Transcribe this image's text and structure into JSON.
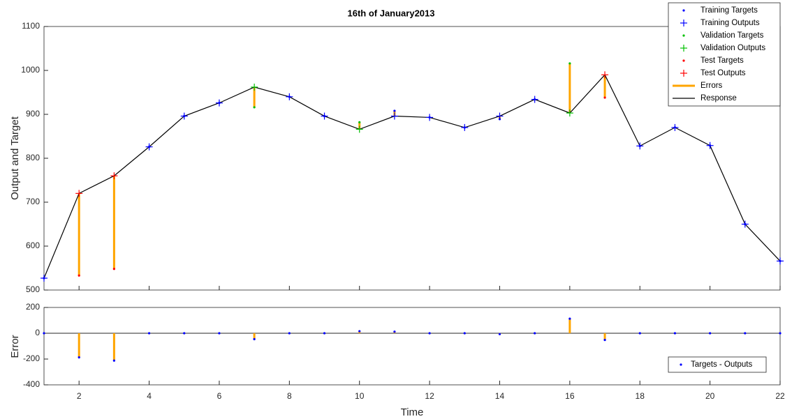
{
  "chart_data": [
    {
      "type": "response",
      "title": "16th of January2013",
      "y_label": "Output and Target",
      "xlim": [
        1,
        22
      ],
      "ylim": [
        500,
        1100
      ],
      "yticks": [
        500,
        600,
        700,
        800,
        900,
        1000,
        1100
      ],
      "x": [
        1,
        2,
        3,
        4,
        5,
        6,
        7,
        8,
        9,
        10,
        11,
        12,
        13,
        14,
        15,
        16,
        17,
        18,
        19,
        20,
        21,
        22
      ],
      "legend": "upper-right",
      "series": [
        {
          "name": "Training Targets",
          "color": "#0000ff",
          "marker": "dot",
          "values": [
            527,
            null,
            null,
            826,
            896,
            926,
            null,
            940,
            896,
            null,
            908,
            893,
            870,
            889,
            934,
            null,
            null,
            828,
            870,
            829,
            650,
            566
          ]
        },
        {
          "name": "Training Outputs",
          "color": "#0000ff",
          "marker": "plus",
          "values": [
            527,
            null,
            null,
            826,
            896,
            926,
            null,
            940,
            896,
            null,
            896,
            893,
            870,
            896,
            934,
            null,
            null,
            828,
            870,
            829,
            650,
            566
          ]
        },
        {
          "name": "Validation Targets",
          "color": "#00c000",
          "marker": "dot",
          "values": [
            null,
            null,
            null,
            null,
            null,
            null,
            916,
            null,
            null,
            882,
            null,
            null,
            null,
            null,
            null,
            1016,
            null,
            null,
            null,
            null,
            null,
            null
          ]
        },
        {
          "name": "Validation Outputs",
          "color": "#00c000",
          "marker": "plus",
          "values": [
            null,
            null,
            null,
            null,
            null,
            null,
            962,
            null,
            null,
            866,
            null,
            null,
            null,
            null,
            null,
            903,
            null,
            null,
            null,
            null,
            null,
            null
          ]
        },
        {
          "name": "Test Targets",
          "color": "#ff0000",
          "marker": "dot",
          "values": [
            null,
            533,
            548,
            null,
            null,
            null,
            null,
            null,
            null,
            null,
            null,
            null,
            null,
            null,
            null,
            null,
            938,
            null,
            null,
            null,
            null,
            null
          ]
        },
        {
          "name": "Test Outputs",
          "color": "#ff0000",
          "marker": "plus",
          "values": [
            null,
            720,
            760,
            null,
            null,
            null,
            null,
            null,
            null,
            null,
            null,
            null,
            null,
            null,
            null,
            null,
            990,
            null,
            null,
            null,
            null,
            null
          ]
        },
        {
          "name": "Errors",
          "color": "#ffa500",
          "marker": "error",
          "values": [
            null,
            -187,
            -212,
            null,
            null,
            null,
            -46,
            null,
            null,
            16,
            12,
            null,
            null,
            -7,
            null,
            113,
            -52,
            null,
            null,
            null,
            null,
            null
          ]
        },
        {
          "name": "Response",
          "color": "#000000",
          "marker": "line",
          "values": [
            527,
            720,
            760,
            826,
            896,
            926,
            962,
            940,
            896,
            866,
            896,
            893,
            870,
            896,
            934,
            903,
            990,
            828,
            870,
            829,
            650,
            566
          ]
        }
      ]
    },
    {
      "type": "error",
      "y_label": "Error",
      "x_label": "Time",
      "xlim": [
        1,
        22
      ],
      "xticks": [
        2,
        4,
        6,
        8,
        10,
        12,
        14,
        16,
        18,
        20,
        22
      ],
      "ylim": [
        -400,
        200
      ],
      "yticks": [
        -400,
        -200,
        0,
        200
      ],
      "x": [
        1,
        2,
        3,
        4,
        5,
        6,
        7,
        8,
        9,
        10,
        11,
        12,
        13,
        14,
        15,
        16,
        17,
        18,
        19,
        20,
        21,
        22
      ],
      "legend": "lower-right",
      "series": [
        {
          "name": "Targets - Outputs",
          "color": "#0000ff",
          "stem_color": "#ffa500",
          "values": [
            0,
            -187,
            -212,
            0,
            0,
            0,
            -46,
            0,
            0,
            16,
            12,
            0,
            0,
            -7,
            0,
            113,
            -52,
            0,
            0,
            0,
            0,
            0
          ]
        }
      ]
    }
  ]
}
